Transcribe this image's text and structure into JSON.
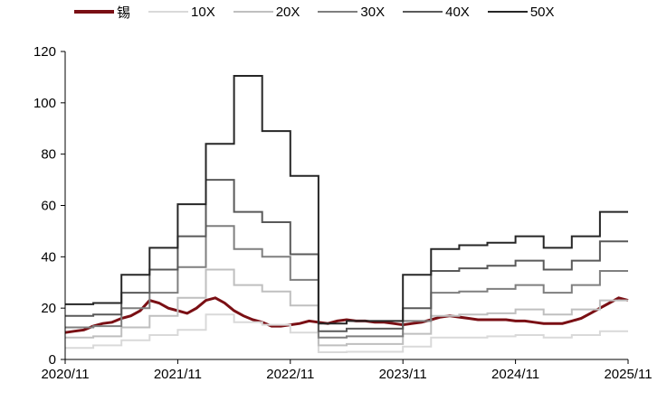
{
  "chart_data": {
    "type": "line",
    "title": "",
    "xlabel": "",
    "ylabel": "",
    "ylim": [
      0,
      120
    ],
    "yticks": [
      0,
      20,
      40,
      60,
      80,
      100,
      120
    ],
    "x_ticks": [
      "2020/11",
      "2021/11",
      "2022/11",
      "2023/11",
      "2024/11",
      "2025/11"
    ],
    "x_tick_dates": [
      "2020-11",
      "2021-11",
      "2022-11",
      "2023-11",
      "2024-11",
      "2025-11"
    ],
    "x_range": [
      "2020-11",
      "2025-11"
    ],
    "legend_position": "top",
    "grid": false,
    "series": [
      {
        "name": "锡",
        "color": "#7a0f14",
        "width": 3,
        "style": "line",
        "points": [
          [
            "2020-11",
            10.5
          ],
          [
            "2020-12",
            11
          ],
          [
            "2021-01",
            11.5
          ],
          [
            "2021-02",
            13
          ],
          [
            "2021-03",
            14
          ],
          [
            "2021-04",
            14.5
          ],
          [
            "2021-05",
            16
          ],
          [
            "2021-06",
            17
          ],
          [
            "2021-07",
            19
          ],
          [
            "2021-08",
            23
          ],
          [
            "2021-09",
            22
          ],
          [
            "2021-10",
            20
          ],
          [
            "2021-11",
            19
          ],
          [
            "2021-12",
            18
          ],
          [
            "2022-01",
            20
          ],
          [
            "2022-02",
            23
          ],
          [
            "2022-03",
            24
          ],
          [
            "2022-04",
            22
          ],
          [
            "2022-05",
            19
          ],
          [
            "2022-06",
            17
          ],
          [
            "2022-07",
            15.5
          ],
          [
            "2022-08",
            14.5
          ],
          [
            "2022-09",
            13
          ],
          [
            "2022-10",
            13
          ],
          [
            "2022-11",
            13.5
          ],
          [
            "2022-12",
            14
          ],
          [
            "2023-01",
            15
          ],
          [
            "2023-02",
            14.5
          ],
          [
            "2023-03",
            14
          ],
          [
            "2023-04",
            15
          ],
          [
            "2023-05",
            15.5
          ],
          [
            "2023-06",
            15
          ],
          [
            "2023-07",
            15
          ],
          [
            "2023-08",
            14.5
          ],
          [
            "2023-09",
            14.5
          ],
          [
            "2023-10",
            14
          ],
          [
            "2023-11",
            13.5
          ],
          [
            "2023-12",
            14
          ],
          [
            "2024-01",
            14.5
          ],
          [
            "2024-02",
            15.5
          ],
          [
            "2024-03",
            16.5
          ],
          [
            "2024-04",
            17
          ],
          [
            "2024-05",
            16.5
          ],
          [
            "2024-06",
            16
          ],
          [
            "2024-07",
            15.5
          ],
          [
            "2024-08",
            15.5
          ],
          [
            "2024-09",
            15.5
          ],
          [
            "2024-10",
            15.5
          ],
          [
            "2024-11",
            15
          ],
          [
            "2024-12",
            15
          ],
          [
            "2025-01",
            14.5
          ],
          [
            "2025-02",
            14
          ],
          [
            "2025-03",
            14
          ],
          [
            "2025-04",
            14
          ],
          [
            "2025-05",
            15
          ],
          [
            "2025-06",
            16
          ],
          [
            "2025-07",
            18
          ],
          [
            "2025-08",
            20
          ],
          [
            "2025-09",
            22
          ],
          [
            "2025-10",
            24
          ],
          [
            "2025-11",
            23
          ]
        ]
      },
      {
        "name": "10X",
        "color": "#d9d9d9",
        "width": 2,
        "style": "step",
        "points": [
          [
            "2020-11",
            4.5
          ],
          [
            "2021-02",
            5.5
          ],
          [
            "2021-05",
            7.5
          ],
          [
            "2021-08",
            9.5
          ],
          [
            "2021-11",
            11.5
          ],
          [
            "2022-02",
            17.5
          ],
          [
            "2022-05",
            14.5
          ],
          [
            "2022-08",
            13.5
          ],
          [
            "2022-11",
            10.5
          ],
          [
            "2023-02",
            2.8
          ],
          [
            "2023-05",
            3.0
          ],
          [
            "2023-08",
            3.0
          ],
          [
            "2023-11",
            5.0
          ],
          [
            "2024-02",
            8.5
          ],
          [
            "2024-05",
            8.5
          ],
          [
            "2024-08",
            9.0
          ],
          [
            "2024-11",
            9.5
          ],
          [
            "2025-02",
            8.5
          ],
          [
            "2025-05",
            9.5
          ],
          [
            "2025-08",
            11.0
          ],
          [
            "2025-11",
            11.0
          ]
        ]
      },
      {
        "name": "20X",
        "color": "#bfbfbf",
        "width": 2,
        "style": "step",
        "points": [
          [
            "2020-11",
            8.5
          ],
          [
            "2021-02",
            9.0
          ],
          [
            "2021-05",
            12.5
          ],
          [
            "2021-08",
            17.0
          ],
          [
            "2021-11",
            24.0
          ],
          [
            "2022-02",
            35.0
          ],
          [
            "2022-05",
            29.0
          ],
          [
            "2022-08",
            26.5
          ],
          [
            "2022-11",
            21.0
          ],
          [
            "2023-02",
            5.5
          ],
          [
            "2023-05",
            6.0
          ],
          [
            "2023-08",
            6.0
          ],
          [
            "2023-11",
            10.0
          ],
          [
            "2024-02",
            17.0
          ],
          [
            "2024-05",
            17.5
          ],
          [
            "2024-08",
            18.0
          ],
          [
            "2024-11",
            19.5
          ],
          [
            "2025-02",
            17.5
          ],
          [
            "2025-05",
            19.5
          ],
          [
            "2025-08",
            23.0
          ],
          [
            "2025-11",
            23.0
          ]
        ]
      },
      {
        "name": "30X",
        "color": "#7f7f7f",
        "width": 2,
        "style": "step",
        "points": [
          [
            "2020-11",
            12.5
          ],
          [
            "2021-02",
            13.0
          ],
          [
            "2021-05",
            20.0
          ],
          [
            "2021-08",
            26.0
          ],
          [
            "2021-11",
            36.0
          ],
          [
            "2022-02",
            52.0
          ],
          [
            "2022-05",
            43.0
          ],
          [
            "2022-08",
            40.0
          ],
          [
            "2022-11",
            31.0
          ],
          [
            "2023-02",
            8.5
          ],
          [
            "2023-05",
            9.0
          ],
          [
            "2023-08",
            9.0
          ],
          [
            "2023-11",
            15.0
          ],
          [
            "2024-02",
            26.0
          ],
          [
            "2024-05",
            26.5
          ],
          [
            "2024-08",
            27.5
          ],
          [
            "2024-11",
            29.0
          ],
          [
            "2025-02",
            26.0
          ],
          [
            "2025-05",
            29.0
          ],
          [
            "2025-08",
            34.5
          ],
          [
            "2025-11",
            34.5
          ]
        ]
      },
      {
        "name": "40X",
        "color": "#595959",
        "width": 2,
        "style": "step",
        "points": [
          [
            "2020-11",
            17.0
          ],
          [
            "2021-02",
            17.5
          ],
          [
            "2021-05",
            26.0
          ],
          [
            "2021-08",
            35.0
          ],
          [
            "2021-11",
            48.0
          ],
          [
            "2022-02",
            70.0
          ],
          [
            "2022-05",
            57.5
          ],
          [
            "2022-08",
            53.5
          ],
          [
            "2022-11",
            41.0
          ],
          [
            "2023-02",
            11.0
          ],
          [
            "2023-05",
            12.0
          ],
          [
            "2023-08",
            12.0
          ],
          [
            "2023-11",
            20.0
          ],
          [
            "2024-02",
            34.5
          ],
          [
            "2024-05",
            35.5
          ],
          [
            "2024-08",
            36.5
          ],
          [
            "2024-11",
            38.5
          ],
          [
            "2025-02",
            35.0
          ],
          [
            "2025-05",
            38.5
          ],
          [
            "2025-08",
            46.0
          ],
          [
            "2025-11",
            46.0
          ]
        ]
      },
      {
        "name": "50X",
        "color": "#262626",
        "width": 2,
        "style": "step",
        "points": [
          [
            "2020-11",
            21.5
          ],
          [
            "2021-02",
            22.0
          ],
          [
            "2021-05",
            33.0
          ],
          [
            "2021-08",
            43.5
          ],
          [
            "2021-11",
            60.5
          ],
          [
            "2022-02",
            84.0
          ],
          [
            "2022-05",
            110.5
          ],
          [
            "2022-08",
            89.0
          ],
          [
            "2022-11",
            71.5
          ],
          [
            "2023-02",
            14.0
          ],
          [
            "2023-05",
            15.0
          ],
          [
            "2023-08",
            15.0
          ],
          [
            "2023-11",
            33.0
          ],
          [
            "2024-02",
            43.0
          ],
          [
            "2024-05",
            44.5
          ],
          [
            "2024-08",
            45.5
          ],
          [
            "2024-11",
            48.0
          ],
          [
            "2025-02",
            43.5
          ],
          [
            "2025-05",
            48.0
          ],
          [
            "2025-08",
            57.5
          ],
          [
            "2025-11",
            57.5
          ]
        ]
      }
    ]
  }
}
